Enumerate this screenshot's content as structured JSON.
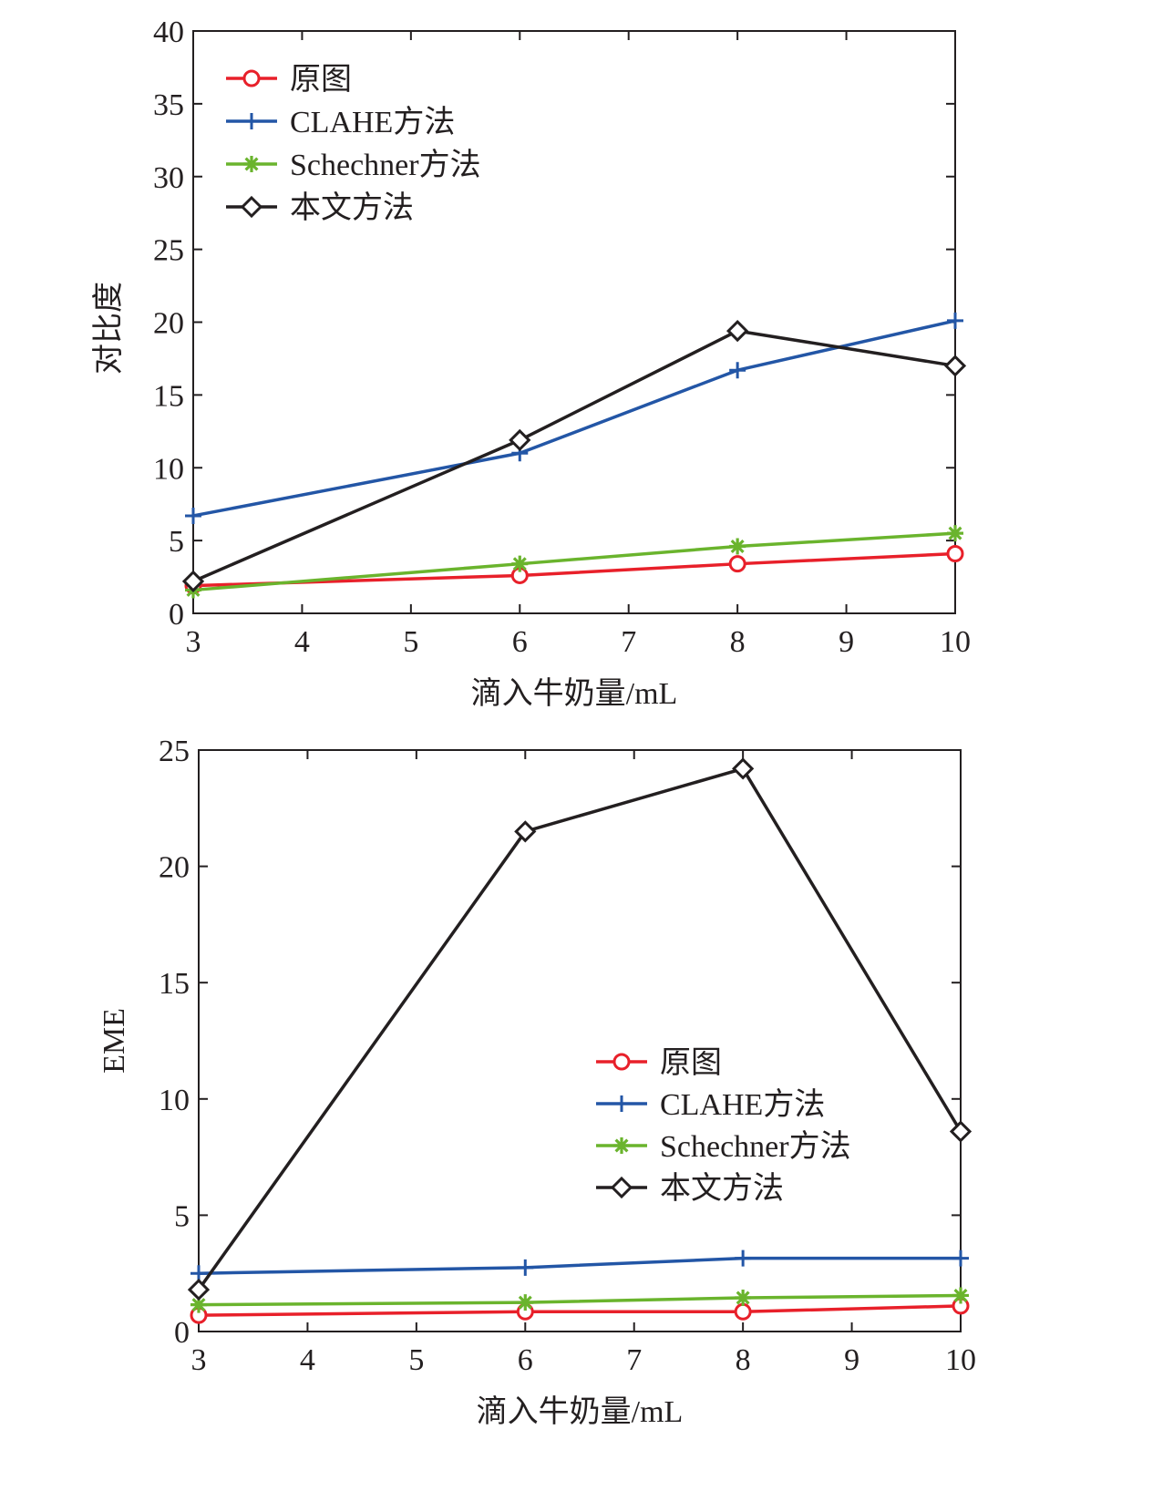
{
  "chart_data": [
    {
      "type": "line",
      "title": "",
      "xlabel": "滴入牛奶量/mL",
      "ylabel": "对比度",
      "xlim": [
        3,
        10
      ],
      "ylim": [
        0,
        40
      ],
      "xticks": [
        "3",
        "4",
        "5",
        "6",
        "7",
        "8",
        "9",
        "10"
      ],
      "yticks": [
        "0",
        "5",
        "10",
        "15",
        "20",
        "25",
        "30",
        "35",
        "40"
      ],
      "x": [
        3,
        6,
        8,
        10
      ],
      "legend_position": "top-left",
      "grid": false,
      "series": [
        {
          "name": "原图",
          "color": "#e8202a",
          "marker": "circle",
          "values": [
            1.9,
            2.6,
            3.4,
            4.1
          ]
        },
        {
          "name": "CLAHE方法",
          "color": "#2356a6",
          "marker": "plus",
          "values": [
            6.7,
            11.0,
            16.7,
            20.1
          ]
        },
        {
          "name": "Schechner方法",
          "color": "#6ab42d",
          "marker": "asterisk",
          "values": [
            1.6,
            3.4,
            4.6,
            5.5
          ]
        },
        {
          "name": "本文方法",
          "color": "#231f20",
          "marker": "diamond",
          "values": [
            2.2,
            11.9,
            19.4,
            17.0
          ]
        }
      ]
    },
    {
      "type": "line",
      "title": "",
      "xlabel": "滴入牛奶量/mL",
      "ylabel": "EME",
      "xlim": [
        3,
        10
      ],
      "ylim": [
        0,
        25
      ],
      "xticks": [
        "3",
        "4",
        "5",
        "6",
        "7",
        "8",
        "9",
        "10"
      ],
      "yticks": [
        "0",
        "5",
        "10",
        "15",
        "20",
        "25"
      ],
      "x": [
        3,
        6,
        8,
        10
      ],
      "legend_position": "center-right",
      "grid": false,
      "series": [
        {
          "name": "原图",
          "color": "#e8202a",
          "marker": "circle",
          "values": [
            0.7,
            0.85,
            0.85,
            1.1
          ]
        },
        {
          "name": "CLAHE方法",
          "color": "#2356a6",
          "marker": "plus",
          "values": [
            2.5,
            2.75,
            3.15,
            3.15
          ]
        },
        {
          "name": "Schechner方法",
          "color": "#6ab42d",
          "marker": "asterisk",
          "values": [
            1.15,
            1.25,
            1.45,
            1.55
          ]
        },
        {
          "name": "本文方法",
          "color": "#231f20",
          "marker": "diamond",
          "values": [
            1.8,
            21.5,
            24.2,
            8.6
          ]
        }
      ]
    }
  ]
}
